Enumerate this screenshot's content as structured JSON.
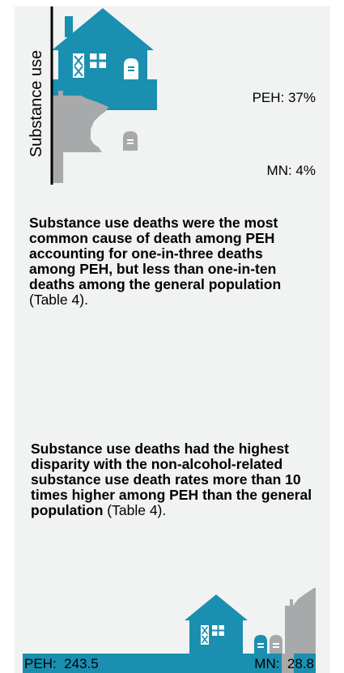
{
  "chart_data": [
    {
      "type": "bar",
      "ylabel": "Substance use",
      "unit": "%",
      "categories": [
        "PEH",
        "MN"
      ],
      "values": [
        37,
        4
      ],
      "data_labels": [
        "PEH: 37%",
        "MN: 4%"
      ],
      "colors": {
        "PEH": "#1a8fb0",
        "MN": "#a8a9ab"
      },
      "icons": [
        "house-icon",
        "minnesota-state-icon",
        "tombstone-icon"
      ]
    },
    {
      "type": "bar",
      "orientation": "horizontal",
      "categories": [
        "PEH",
        "MN"
      ],
      "values": [
        243.5,
        28.8
      ],
      "data_labels": [
        "PEH:  243.5",
        "MN:  28.8"
      ],
      "colors": {
        "PEH": "#1a8fb0",
        "MN": "#a8a9ab"
      },
      "icons": [
        "house-icon",
        "tombstone-icon",
        "minnesota-state-icon"
      ]
    }
  ],
  "text": {
    "p1_bold": "Substance use deaths were the most common cause of death among PEH accounting for one-in-three deaths among PEH, but less than one-in-ten deaths among the general population",
    "p1_plain": " (Table 4).",
    "p2_bold": "Substance use deaths had the highest disparity with the non-alcohol-related substance use death rates more than 10 times higher among PEH than the general population",
    "p2_plain": " (Table 4)."
  }
}
